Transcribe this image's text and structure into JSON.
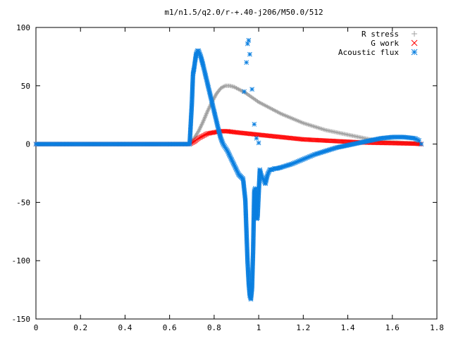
{
  "chart_data": {
    "type": "scatter",
    "title": "m1/n1.5/q2.0/r-+.40-j206/M50.0/512",
    "xlabel": "",
    "ylabel": "",
    "xlim": [
      0,
      1.8
    ],
    "ylim": [
      -150,
      100
    ],
    "xticks": [
      "0",
      "0.2",
      "0.4",
      "0.6",
      "0.8",
      "1",
      "1.2",
      "1.4",
      "1.6",
      "1.8"
    ],
    "yticks": [
      "100",
      "50",
      "0",
      "-50",
      "-100",
      "-150"
    ],
    "grid": false,
    "legend_position": "top-right",
    "series": [
      {
        "name": "R stress",
        "marker": "plus",
        "color": "#a0a0a0",
        "points": [
          [
            0.0,
            0
          ],
          [
            0.1,
            0
          ],
          [
            0.2,
            0
          ],
          [
            0.3,
            0
          ],
          [
            0.4,
            0
          ],
          [
            0.5,
            0
          ],
          [
            0.6,
            0
          ],
          [
            0.69,
            0
          ],
          [
            0.71,
            5
          ],
          [
            0.73,
            11
          ],
          [
            0.75,
            19
          ],
          [
            0.77,
            28
          ],
          [
            0.79,
            36
          ],
          [
            0.81,
            43
          ],
          [
            0.83,
            48
          ],
          [
            0.85,
            50
          ],
          [
            0.87,
            50
          ],
          [
            0.89,
            49
          ],
          [
            0.91,
            47
          ],
          [
            0.94,
            44
          ],
          [
            0.97,
            40
          ],
          [
            1.0,
            36
          ],
          [
            1.05,
            31
          ],
          [
            1.1,
            26
          ],
          [
            1.15,
            22
          ],
          [
            1.2,
            18
          ],
          [
            1.25,
            15
          ],
          [
            1.3,
            12
          ],
          [
            1.35,
            10
          ],
          [
            1.4,
            8
          ],
          [
            1.45,
            6
          ],
          [
            1.5,
            4
          ],
          [
            1.55,
            3
          ],
          [
            1.6,
            2
          ],
          [
            1.65,
            1
          ],
          [
            1.7,
            0.5
          ],
          [
            1.73,
            0
          ]
        ]
      },
      {
        "name": "G work",
        "marker": "cross",
        "color": "#ff0000",
        "points": [
          [
            0.0,
            0
          ],
          [
            0.1,
            0
          ],
          [
            0.2,
            0
          ],
          [
            0.3,
            0
          ],
          [
            0.4,
            0
          ],
          [
            0.5,
            0
          ],
          [
            0.6,
            0
          ],
          [
            0.69,
            0
          ],
          [
            0.71,
            2
          ],
          [
            0.73,
            5
          ],
          [
            0.75,
            7
          ],
          [
            0.77,
            9
          ],
          [
            0.8,
            10
          ],
          [
            0.83,
            11
          ],
          [
            0.86,
            11
          ],
          [
            0.9,
            10
          ],
          [
            0.95,
            9
          ],
          [
            1.0,
            8
          ],
          [
            1.05,
            7
          ],
          [
            1.1,
            6
          ],
          [
            1.15,
            5
          ],
          [
            1.2,
            4
          ],
          [
            1.25,
            3.5
          ],
          [
            1.3,
            3
          ],
          [
            1.35,
            2.5
          ],
          [
            1.4,
            2
          ],
          [
            1.45,
            1.5
          ],
          [
            1.5,
            1.2
          ],
          [
            1.55,
            1
          ],
          [
            1.6,
            0.8
          ],
          [
            1.65,
            0.6
          ],
          [
            1.7,
            0.4
          ],
          [
            1.73,
            0
          ]
        ]
      },
      {
        "name": "Acoustic flux",
        "marker": "star",
        "color": "#0a7fe0",
        "points": [
          [
            0.0,
            0
          ],
          [
            0.1,
            0
          ],
          [
            0.2,
            0
          ],
          [
            0.3,
            0
          ],
          [
            0.4,
            0
          ],
          [
            0.5,
            0
          ],
          [
            0.6,
            0
          ],
          [
            0.69,
            0
          ],
          [
            0.7,
            35
          ],
          [
            0.705,
            60
          ],
          [
            0.71,
            65
          ],
          [
            0.715,
            72
          ],
          [
            0.72,
            78
          ],
          [
            0.725,
            80
          ],
          [
            0.73,
            80
          ],
          [
            0.74,
            75
          ],
          [
            0.75,
            68
          ],
          [
            0.76,
            60
          ],
          [
            0.77,
            52
          ],
          [
            0.78,
            44
          ],
          [
            0.79,
            36
          ],
          [
            0.8,
            28
          ],
          [
            0.81,
            20
          ],
          [
            0.82,
            12
          ],
          [
            0.83,
            5
          ],
          [
            0.84,
            0
          ],
          [
            0.85,
            -3
          ],
          [
            0.86,
            -6
          ],
          [
            0.87,
            -10
          ],
          [
            0.88,
            -14
          ],
          [
            0.89,
            -18
          ],
          [
            0.9,
            -22
          ],
          [
            0.91,
            -26
          ],
          [
            0.92,
            -28
          ],
          [
            0.93,
            -30
          ],
          [
            0.94,
            -48
          ],
          [
            0.945,
            -75
          ],
          [
            0.95,
            -101
          ],
          [
            0.955,
            -119
          ],
          [
            0.96,
            -130
          ],
          [
            0.965,
            -133
          ],
          [
            0.97,
            -124
          ],
          [
            0.975,
            -91
          ],
          [
            0.98,
            -40
          ],
          [
            0.985,
            -38
          ],
          [
            0.99,
            -64
          ],
          [
            0.995,
            -63
          ],
          [
            1.0,
            -42
          ],
          [
            1.005,
            -22
          ],
          [
            1.01,
            -26
          ],
          [
            1.02,
            -30
          ],
          [
            1.03,
            -34
          ],
          [
            1.04,
            -26
          ],
          [
            1.05,
            -22
          ],
          [
            1.06,
            -22
          ],
          [
            1.07,
            -21
          ],
          [
            1.08,
            -21
          ],
          [
            1.1,
            -20
          ],
          [
            1.15,
            -17
          ],
          [
            1.2,
            -13
          ],
          [
            1.25,
            -9
          ],
          [
            1.3,
            -6
          ],
          [
            1.35,
            -3
          ],
          [
            1.4,
            -1
          ],
          [
            1.45,
            1
          ],
          [
            1.5,
            3
          ],
          [
            1.55,
            5
          ],
          [
            1.6,
            6
          ],
          [
            1.65,
            6
          ],
          [
            1.7,
            5
          ],
          [
            1.72,
            3
          ],
          [
            1.73,
            0
          ],
          [
            0.935,
            45
          ],
          [
            0.945,
            70
          ],
          [
            0.95,
            86
          ],
          [
            0.955,
            89
          ],
          [
            0.96,
            77
          ],
          [
            0.97,
            47
          ],
          [
            0.98,
            17
          ],
          [
            0.99,
            5
          ],
          [
            1.0,
            1
          ]
        ]
      }
    ]
  }
}
